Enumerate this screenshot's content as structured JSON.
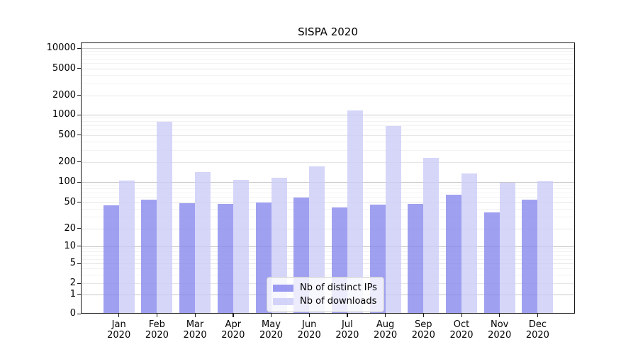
{
  "chart_data": {
    "type": "bar",
    "title": "SISPA 2020",
    "x_categories": [
      "Jan",
      "Feb",
      "Mar",
      "Apr",
      "May",
      "Jun",
      "Jul",
      "Aug",
      "Sep",
      "Oct",
      "Nov",
      "Dec"
    ],
    "x_year": "2020",
    "series": [
      {
        "name": "Nb of distinct IPs",
        "color": "#8888ee",
        "values": [
          45,
          55,
          48,
          47,
          50,
          59,
          42,
          46,
          47,
          64,
          35,
          54
        ]
      },
      {
        "name": "Nb of downloads",
        "color": "#ccccf8",
        "values": [
          105,
          780,
          140,
          108,
          115,
          170,
          1150,
          680,
          230,
          135,
          98,
          103
        ]
      }
    ],
    "yscale": "symlog",
    "ylim": [
      0,
      10000
    ],
    "y_tick_labels": [
      "10000",
      "5000",
      "2000",
      "1000",
      "500",
      "200",
      "100",
      "50",
      "20",
      "10",
      "5",
      "2",
      "1",
      "0"
    ],
    "grid": true,
    "legend_position": "lower-center-inside"
  }
}
